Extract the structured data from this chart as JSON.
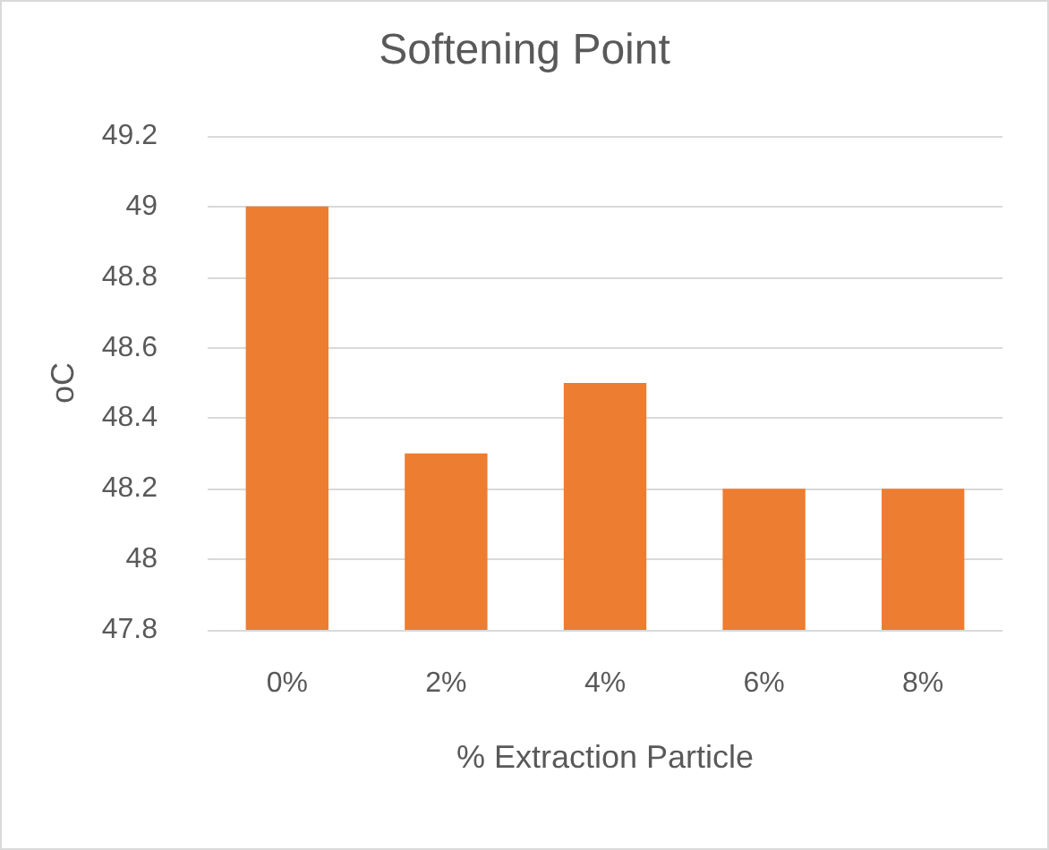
{
  "chart_data": {
    "type": "bar",
    "title": "Softening Point",
    "xlabel": "% Extraction Particle",
    "ylabel": "oC",
    "categories": [
      "0%",
      "2%",
      "4%",
      "6%",
      "8%"
    ],
    "values": [
      49,
      48.3,
      48.5,
      48.2,
      48.2
    ],
    "color": "#ed7d31",
    "ylim": [
      47.8,
      49.2
    ],
    "yticks": [
      47.8,
      48,
      48.2,
      48.4,
      48.6,
      48.8,
      49,
      49.2
    ],
    "grid": "y"
  }
}
